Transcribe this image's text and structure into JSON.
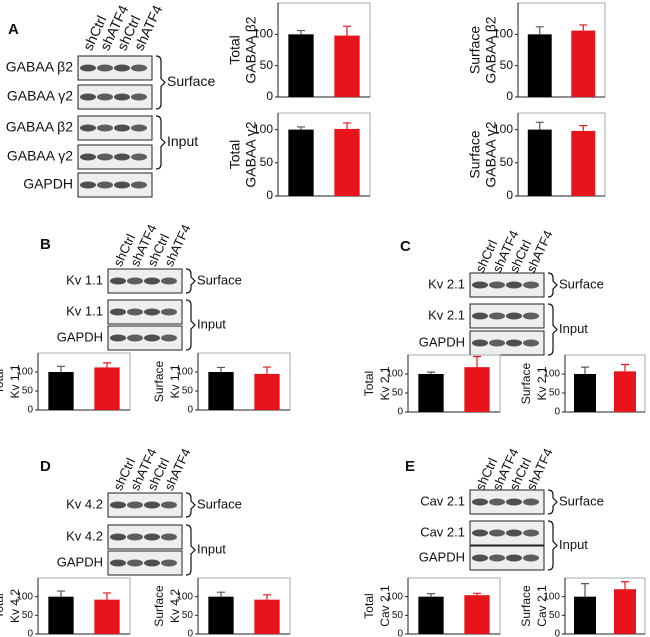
{
  "figure": {
    "panels": [
      {
        "label": "A",
        "lanes": [
          "shCtrl",
          "shATF4",
          "shCtrl",
          "shATF4"
        ],
        "rows": [
          "GABAA β2",
          "GABAA γ2",
          "GABAA β2",
          "GABAA γ2",
          "GAPDH"
        ],
        "groups": [
          "Surface",
          "Input"
        ]
      },
      {
        "label": "B",
        "lanes": [
          "shCtrl",
          "shATF4",
          "shCtrl",
          "shATF4"
        ],
        "rows": [
          "Kv 1.1",
          "Kv 1.1",
          "GAPDH"
        ],
        "groups": [
          "Surface",
          "Input"
        ]
      },
      {
        "label": "C",
        "lanes": [
          "shCtrl",
          "shATF4",
          "shCtrl",
          "shATF4"
        ],
        "rows": [
          "Kv 2.1",
          "Kv 2.1",
          "GAPDH"
        ],
        "groups": [
          "Surface",
          "Input"
        ]
      },
      {
        "label": "D",
        "lanes": [
          "shCtrl",
          "shATF4",
          "shCtrl",
          "shATF4"
        ],
        "rows": [
          "Kv 4.2",
          "Kv 4.2",
          "GAPDH"
        ],
        "groups": [
          "Surface",
          "Input"
        ]
      },
      {
        "label": "E",
        "lanes": [
          "shCtrl",
          "shATF4",
          "shCtrl",
          "shATF4"
        ],
        "rows": [
          "Cav 2.1",
          "Cav 2.1",
          "GAPDH"
        ],
        "groups": [
          "Surface",
          "Input"
        ]
      }
    ]
  },
  "chart_data": [
    {
      "type": "bar",
      "ylabel": [
        "Total",
        "GABAA β2"
      ],
      "categories": [
        null,
        null
      ],
      "values": [
        100,
        98
      ],
      "errors": [
        6,
        15
      ],
      "colors": [
        "#000000",
        "#e8141b"
      ],
      "ylim": [
        0,
        150
      ],
      "yticks": [
        0,
        50,
        100
      ]
    },
    {
      "type": "bar",
      "ylabel": [
        "Surface",
        "GABAA β2"
      ],
      "categories": [
        null,
        null
      ],
      "values": [
        100,
        106
      ],
      "errors": [
        12,
        9
      ],
      "colors": [
        "#000000",
        "#e8141b"
      ],
      "ylim": [
        0,
        150
      ],
      "yticks": [
        0,
        50,
        100
      ]
    },
    {
      "type": "bar",
      "ylabel": [
        "Total",
        "GABAA γ2"
      ],
      "categories": [
        null,
        null
      ],
      "values": [
        100,
        101
      ],
      "errors": [
        4,
        9
      ],
      "colors": [
        "#000000",
        "#e8141b"
      ],
      "ylim": [
        0,
        125
      ],
      "yticks": [
        0,
        50,
        100
      ]
    },
    {
      "type": "bar",
      "ylabel": [
        "Surface",
        "GABAA γ2"
      ],
      "categories": [
        null,
        null
      ],
      "values": [
        100,
        98
      ],
      "errors": [
        11,
        8
      ],
      "colors": [
        "#000000",
        "#e8141b"
      ],
      "ylim": [
        0,
        125
      ],
      "yticks": [
        0,
        50,
        100
      ]
    },
    {
      "type": "bar",
      "ylabel": [
        "Total",
        "Kv 1.1"
      ],
      "categories": [
        null,
        null
      ],
      "values": [
        100,
        112
      ],
      "errors": [
        15,
        12
      ],
      "colors": [
        "#000000",
        "#e8141b"
      ],
      "ylim": [
        0,
        150
      ],
      "yticks": [
        0,
        50,
        100
      ]
    },
    {
      "type": "bar",
      "ylabel": [
        "Surface",
        "Kv 1.1"
      ],
      "categories": [
        null,
        null
      ],
      "values": [
        100,
        95
      ],
      "errors": [
        12,
        18
      ],
      "colors": [
        "#000000",
        "#e8141b"
      ],
      "ylim": [
        0,
        150
      ],
      "yticks": [
        0,
        50,
        100
      ]
    },
    {
      "type": "bar",
      "ylabel": [
        "Total",
        "Kv 2.1"
      ],
      "categories": [
        null,
        null
      ],
      "values": [
        100,
        118
      ],
      "errors": [
        5,
        28
      ],
      "colors": [
        "#000000",
        "#e8141b"
      ],
      "ylim": [
        0,
        150
      ],
      "yticks": [
        0,
        50,
        100
      ]
    },
    {
      "type": "bar",
      "ylabel": [
        "Surface",
        "Kv 2.1"
      ],
      "categories": [
        null,
        null
      ],
      "values": [
        100,
        107
      ],
      "errors": [
        18,
        18
      ],
      "colors": [
        "#000000",
        "#e8141b"
      ],
      "ylim": [
        0,
        150
      ],
      "yticks": [
        0,
        50,
        100
      ]
    },
    {
      "type": "bar",
      "ylabel": [
        "Total",
        "Kv 4.2"
      ],
      "categories": [
        null,
        null
      ],
      "values": [
        100,
        92
      ],
      "errors": [
        15,
        18
      ],
      "colors": [
        "#000000",
        "#e8141b"
      ],
      "ylim": [
        0,
        150
      ],
      "yticks": [
        0,
        50,
        100
      ]
    },
    {
      "type": "bar",
      "ylabel": [
        "Surface",
        "Kv 4.2"
      ],
      "categories": [
        null,
        null
      ],
      "values": [
        100,
        92
      ],
      "errors": [
        12,
        13
      ],
      "colors": [
        "#000000",
        "#e8141b"
      ],
      "ylim": [
        0,
        150
      ],
      "yticks": [
        0,
        50,
        100
      ]
    },
    {
      "type": "bar",
      "ylabel": [
        "Total",
        "Cav 2.1"
      ],
      "categories": [
        null,
        null
      ],
      "values": [
        100,
        104
      ],
      "errors": [
        8,
        5
      ],
      "colors": [
        "#000000",
        "#e8141b"
      ],
      "ylim": [
        0,
        150
      ],
      "yticks": [
        0,
        50,
        100
      ]
    },
    {
      "type": "bar",
      "ylabel": [
        "Surface",
        "Cav 2.1"
      ],
      "categories": [
        null,
        null
      ],
      "values": [
        100,
        120
      ],
      "errors": [
        35,
        20
      ],
      "colors": [
        "#000000",
        "#e8141b"
      ],
      "ylim": [
        0,
        150
      ],
      "yticks": [
        0,
        50,
        100
      ]
    }
  ]
}
